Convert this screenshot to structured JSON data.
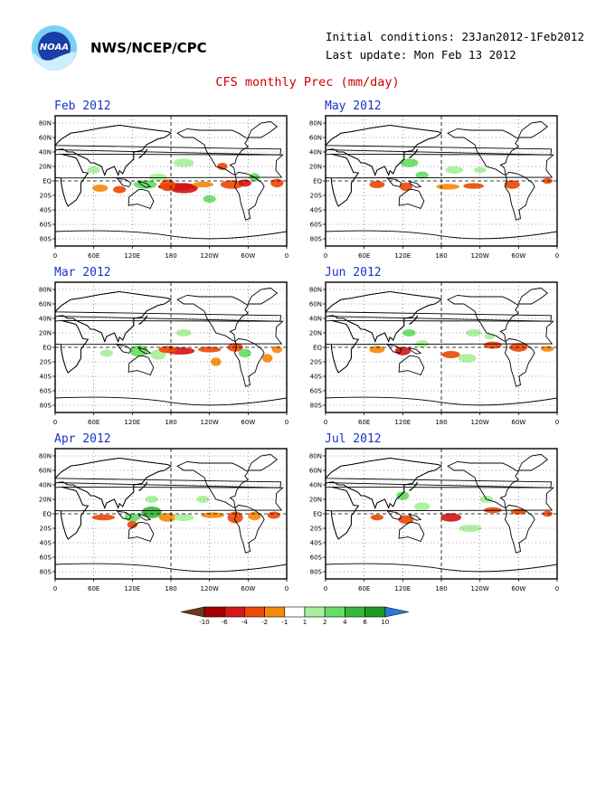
{
  "header": {
    "org": "NWS/NCEP/CPC",
    "initial_conditions": "Initial conditions: 23Jan2012-1Feb2012",
    "last_update": "Last update: Mon Feb 13 2012",
    "title": "CFS monthly Prec (mm/day)",
    "logo_text": "NOAA"
  },
  "axes": {
    "lat_labels": [
      "80N",
      "60N",
      "40N",
      "20N",
      "EQ",
      "20S",
      "40S",
      "60S",
      "80S"
    ],
    "lon_labels": [
      "0",
      "60E",
      "120E",
      "180",
      "120W",
      "60W",
      "0"
    ]
  },
  "panels": [
    {
      "month": "Feb 2012"
    },
    {
      "month": "Mar 2012"
    },
    {
      "month": "Apr 2012"
    },
    {
      "month": "May 2012"
    },
    {
      "month": "Jun 2012"
    },
    {
      "month": "Jul 2012"
    }
  ],
  "colorbar": {
    "ticks": [
      "-10",
      "-6",
      "-4",
      "-2",
      "-1",
      "1",
      "2",
      "4",
      "6",
      "10"
    ],
    "colors": [
      "#6b3a1f",
      "#a50000",
      "#d41818",
      "#ee4a0a",
      "#f58a0c",
      "#ffffff",
      "#a8f09a",
      "#66dd66",
      "#38b838",
      "#1f9a1f",
      "#2a78d8"
    ]
  }
}
